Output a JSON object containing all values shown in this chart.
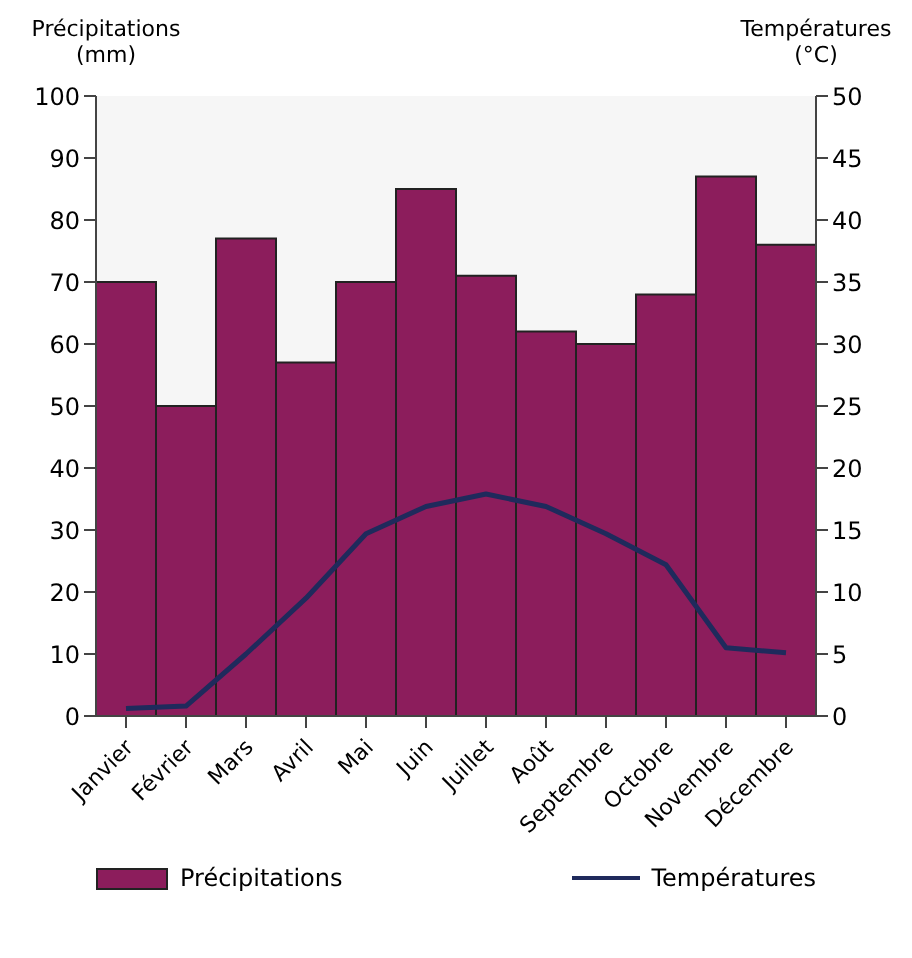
{
  "chart_data": {
    "type": "bar",
    "ylabel": "Précipitations (mm)",
    "y2label": "Températures (°C)",
    "categories": [
      "Janvier",
      "Février",
      "Mars",
      "Avril",
      "Mai",
      "Juin",
      "Juillet",
      "Août",
      "Septembre",
      "Octobre",
      "Novembre",
      "Décembre"
    ],
    "series": [
      {
        "name": "Précipitations",
        "color": "#8c1d5c",
        "values": [
          70,
          50,
          77,
          57,
          70,
          85,
          71,
          62,
          60,
          68,
          87,
          76
        ]
      },
      {
        "name": "Températures",
        "type": "line",
        "axis": "y2",
        "color": "#1f2a5c",
        "values": [
          0.6,
          0.8,
          5,
          9.5,
          14.7,
          16.9,
          17.9,
          16.9,
          14.7,
          12.2,
          5.5,
          5.1
        ]
      }
    ],
    "ylim": [
      0,
      100
    ],
    "yticks": [
      0,
      10,
      20,
      30,
      40,
      50,
      60,
      70,
      80,
      90,
      100
    ],
    "y2lim": [
      0,
      50
    ],
    "y2ticks": [
      0,
      5,
      10,
      15,
      20,
      25,
      30,
      35,
      40,
      45,
      50
    ],
    "grid": false,
    "legend": "bottom",
    "marker": "none",
    "line_style": "solid"
  }
}
